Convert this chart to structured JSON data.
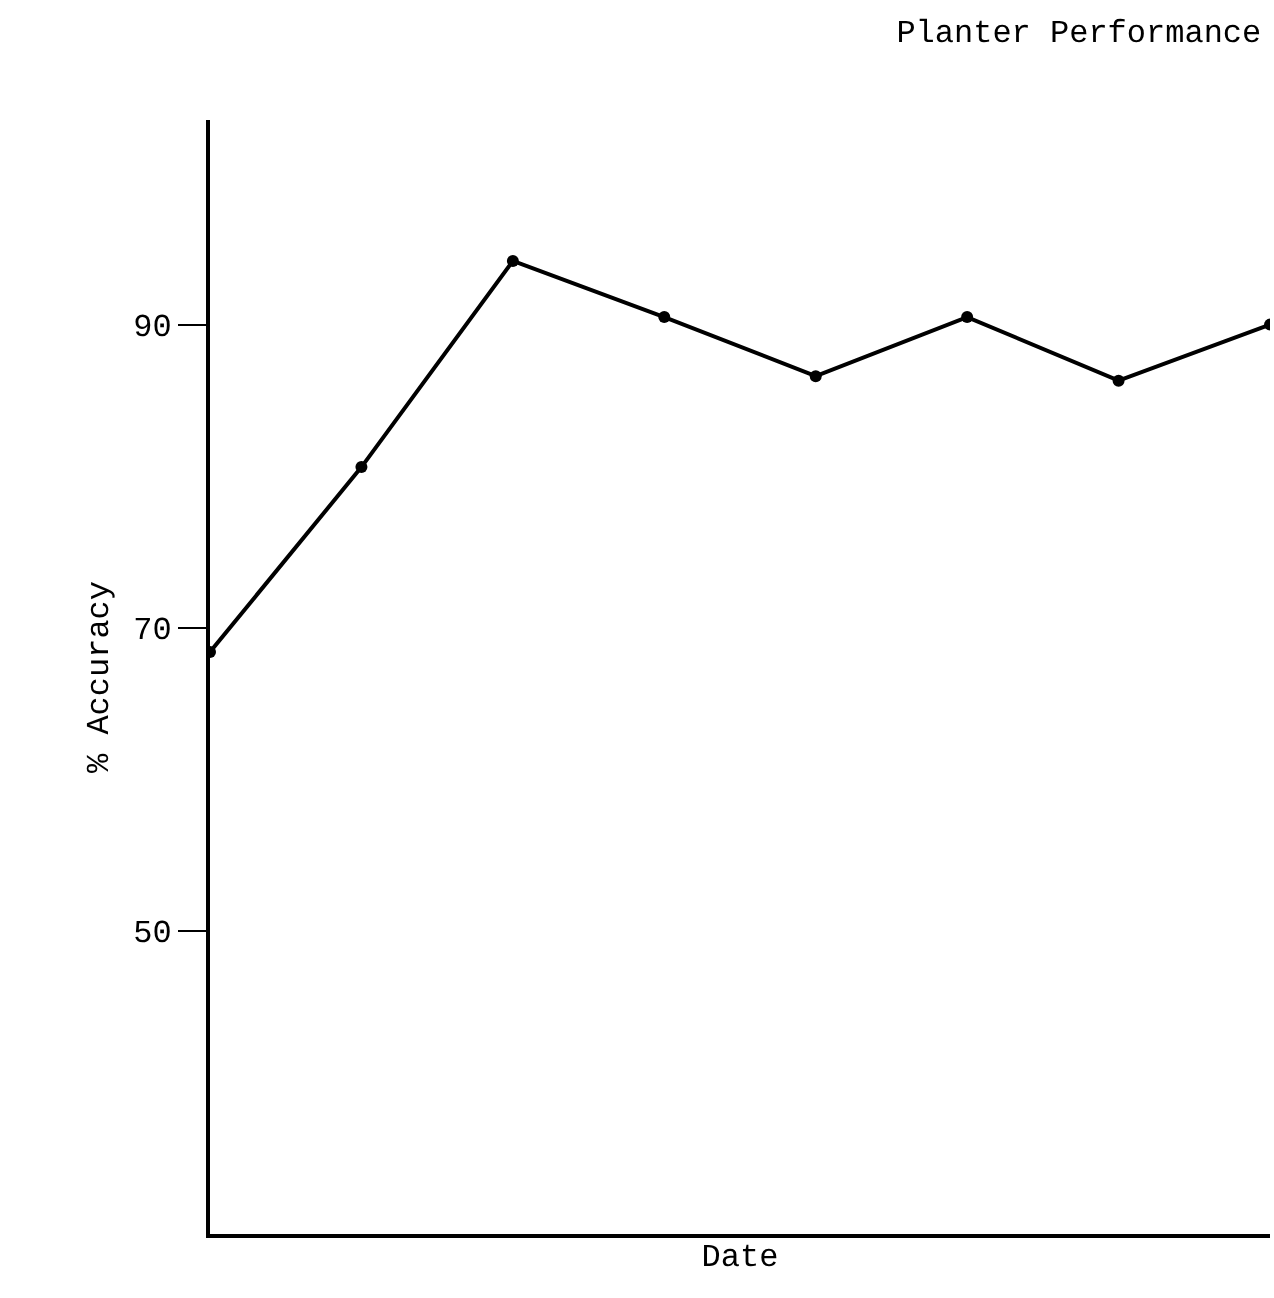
{
  "chart_data": {
    "type": "line",
    "title": "Planter Performance",
    "xlabel": "Date",
    "ylabel": "% Accuracy",
    "categories": [
      null,
      null,
      null,
      null,
      null,
      null,
      null,
      null
    ],
    "series": [
      {
        "color": "#000000",
        "values": [
          68.4,
          80.6,
          94.2,
          90.5,
          86.6,
          90.5,
          86.3,
          90
        ]
      }
    ],
    "ylim": [
      30,
      103.5
    ],
    "yticks": [
      50,
      70,
      90
    ],
    "grid": false,
    "marker": "circle",
    "line_style": "solid",
    "tick_labels": "y"
  }
}
